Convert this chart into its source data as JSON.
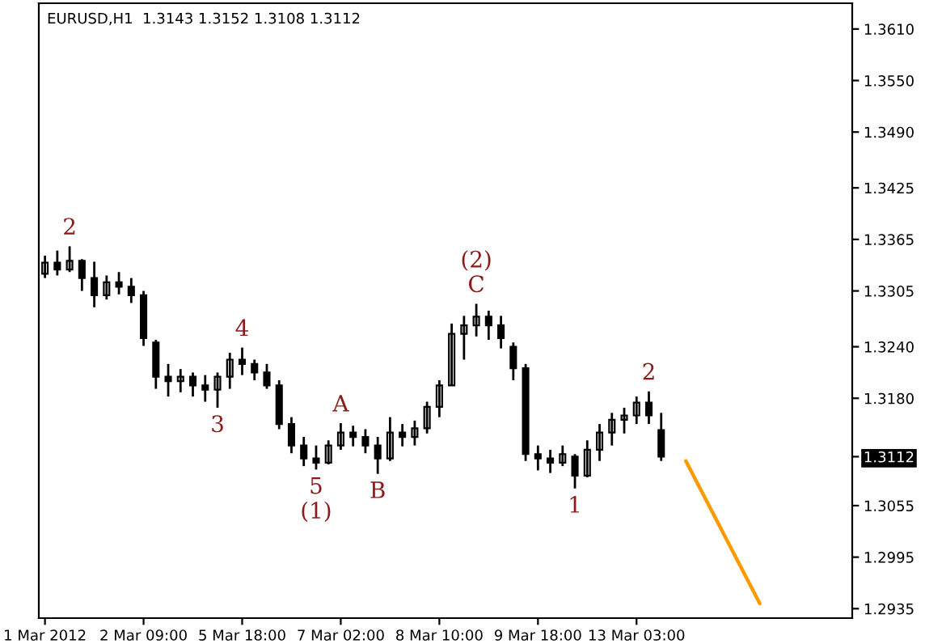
{
  "chart_data": {
    "type": "candlestick",
    "title": "EURUSD,H1  1.3143 1.3152 1.3108 1.3112",
    "categories": [
      "1 Mar 2012",
      null,
      null,
      null,
      null,
      null,
      null,
      null,
      "2 Mar 09:00",
      null,
      null,
      null,
      null,
      null,
      null,
      null,
      "5 Mar 18:00",
      null,
      null,
      null,
      null,
      null,
      null,
      null,
      "7 Mar 02:00",
      null,
      null,
      null,
      null,
      null,
      null,
      null,
      "8 Mar 10:00",
      null,
      null,
      null,
      null,
      null,
      null,
      null,
      "9 Mar 18:00",
      null,
      null,
      null,
      null,
      null,
      null,
      null,
      "13 Mar 03:00",
      null,
      null,
      null,
      null,
      null,
      null,
      null,
      null,
      null,
      null,
      null,
      null,
      null,
      null,
      null,
      null,
      null
    ],
    "ohlc": [
      [
        1.3325,
        1.3346,
        1.332,
        1.3338
      ],
      [
        1.3338,
        1.3352,
        1.3323,
        1.333
      ],
      [
        1.333,
        1.3357,
        1.3327,
        1.334
      ],
      [
        1.334,
        1.3342,
        1.3305,
        1.332
      ],
      [
        1.332,
        1.3339,
        1.3286,
        1.33
      ],
      [
        1.33,
        1.3323,
        1.3295,
        1.3315
      ],
      [
        1.3315,
        1.3327,
        1.3301,
        1.331
      ],
      [
        1.331,
        1.332,
        1.3291,
        1.33
      ],
      [
        1.33,
        1.3305,
        1.3241,
        1.325
      ],
      [
        1.3245,
        1.3248,
        1.3191,
        1.3205
      ],
      [
        1.3205,
        1.322,
        1.3182,
        1.32
      ],
      [
        1.32,
        1.3214,
        1.3187,
        1.3205
      ],
      [
        1.3205,
        1.321,
        1.3182,
        1.3195
      ],
      [
        1.3195,
        1.3207,
        1.3176,
        1.319
      ],
      [
        1.319,
        1.321,
        1.3169,
        1.3205
      ],
      [
        1.3205,
        1.3233,
        1.3191,
        1.3225
      ],
      [
        1.3225,
        1.3239,
        1.3207,
        1.322
      ],
      [
        1.322,
        1.3225,
        1.3201,
        1.321
      ],
      [
        1.321,
        1.322,
        1.3191,
        1.3195
      ],
      [
        1.3195,
        1.3201,
        1.3144,
        1.315
      ],
      [
        1.315,
        1.3158,
        1.3116,
        1.3125
      ],
      [
        1.3125,
        1.3135,
        1.3101,
        1.311
      ],
      [
        1.311,
        1.3125,
        1.3097,
        1.3105
      ],
      [
        1.3105,
        1.3131,
        1.3103,
        1.3125
      ],
      [
        1.3125,
        1.3151,
        1.312,
        1.314
      ],
      [
        1.314,
        1.3148,
        1.3124,
        1.3135
      ],
      [
        1.3135,
        1.3144,
        1.3116,
        1.3125
      ],
      [
        1.3125,
        1.3135,
        1.3092,
        1.311
      ],
      [
        1.311,
        1.3158,
        1.3107,
        1.314
      ],
      [
        1.314,
        1.315,
        1.3124,
        1.3135
      ],
      [
        1.3135,
        1.3154,
        1.3125,
        1.3145
      ],
      [
        1.3145,
        1.3176,
        1.3139,
        1.317
      ],
      [
        1.317,
        1.3201,
        1.3158,
        1.3195
      ],
      [
        1.3195,
        1.3267,
        1.3195,
        1.3255
      ],
      [
        1.3255,
        1.3276,
        1.3225,
        1.3265
      ],
      [
        1.3265,
        1.329,
        1.3252,
        1.3275
      ],
      [
        1.3275,
        1.3282,
        1.3248,
        1.3265
      ],
      [
        1.3265,
        1.3276,
        1.3238,
        1.325
      ],
      [
        1.324,
        1.3245,
        1.3201,
        1.3215
      ],
      [
        1.3215,
        1.322,
        1.3107,
        1.3115
      ],
      [
        1.3115,
        1.3125,
        1.3096,
        1.311
      ],
      [
        1.311,
        1.312,
        1.3093,
        1.3105
      ],
      [
        1.3105,
        1.3125,
        1.3101,
        1.3115
      ],
      [
        1.3112,
        1.3115,
        1.3075,
        1.309
      ],
      [
        1.309,
        1.3131,
        1.3088,
        1.312
      ],
      [
        1.312,
        1.315,
        1.3107,
        1.314
      ],
      [
        1.314,
        1.3163,
        1.3125,
        1.3155
      ],
      [
        1.3155,
        1.3169,
        1.3139,
        1.316
      ],
      [
        1.316,
        1.3182,
        1.315,
        1.3175
      ],
      [
        1.3175,
        1.3188,
        1.315,
        1.316
      ],
      [
        1.3143,
        1.3163,
        1.3107,
        1.3112
      ],
      null,
      null,
      null,
      null,
      null,
      null,
      null,
      null,
      null,
      null,
      null,
      null,
      null,
      null,
      null
    ],
    "color": "#000000",
    "series": [
      {
        "type": "line",
        "values": [
          null,
          null,
          null,
          null,
          null,
          null,
          null,
          null,
          null,
          null,
          null,
          null,
          null,
          null,
          null,
          null,
          null,
          null,
          null,
          null,
          null,
          null,
          null,
          null,
          null,
          null,
          null,
          null,
          null,
          null,
          null,
          null,
          null,
          null,
          null,
          null,
          null,
          null,
          null,
          null,
          null,
          null,
          null,
          null,
          null,
          null,
          null,
          null,
          null,
          null,
          null,
          null,
          1.3107,
          null,
          null,
          null,
          null,
          null,
          1.2941,
          null,
          null,
          null,
          null,
          null,
          null,
          null
        ],
        "color": "#ff9900"
      }
    ],
    "ylim": [
      1.2924,
      1.364
    ],
    "yticks": [
      {
        "value": 1.361,
        "label": "1.3610"
      },
      {
        "value": 1.355,
        "label": "1.3550"
      },
      {
        "value": 1.349,
        "label": "1.3490"
      },
      1.3425,
      1.3365,
      1.3305,
      {
        "value": 1.324,
        "label": "1.3240"
      },
      {
        "value": 1.318,
        "label": "1.3180"
      },
      1.3112,
      1.3055,
      1.2995,
      1.2935
    ],
    "grid": false,
    "annotations": [
      {
        "text": "2",
        "y": 1.3357
      },
      {
        "text": "3",
        "y": 1.3169
      },
      {
        "text": "4",
        "y": 1.3239
      },
      {
        "text": "5",
        "y": 1.3097
      },
      {
        "text": "(1)",
        "y": 1.3097
      },
      {
        "text": "A",
        "y": 1.3151
      },
      {
        "text": "B",
        "y": 1.3092
      },
      {
        "text": "C",
        "y": 1.329
      },
      {
        "text": "(2)",
        "y": 1.329
      },
      {
        "text": "1",
        "y": 1.3075
      },
      {
        "text": "2",
        "y": 1.3188
      }
    ]
  }
}
